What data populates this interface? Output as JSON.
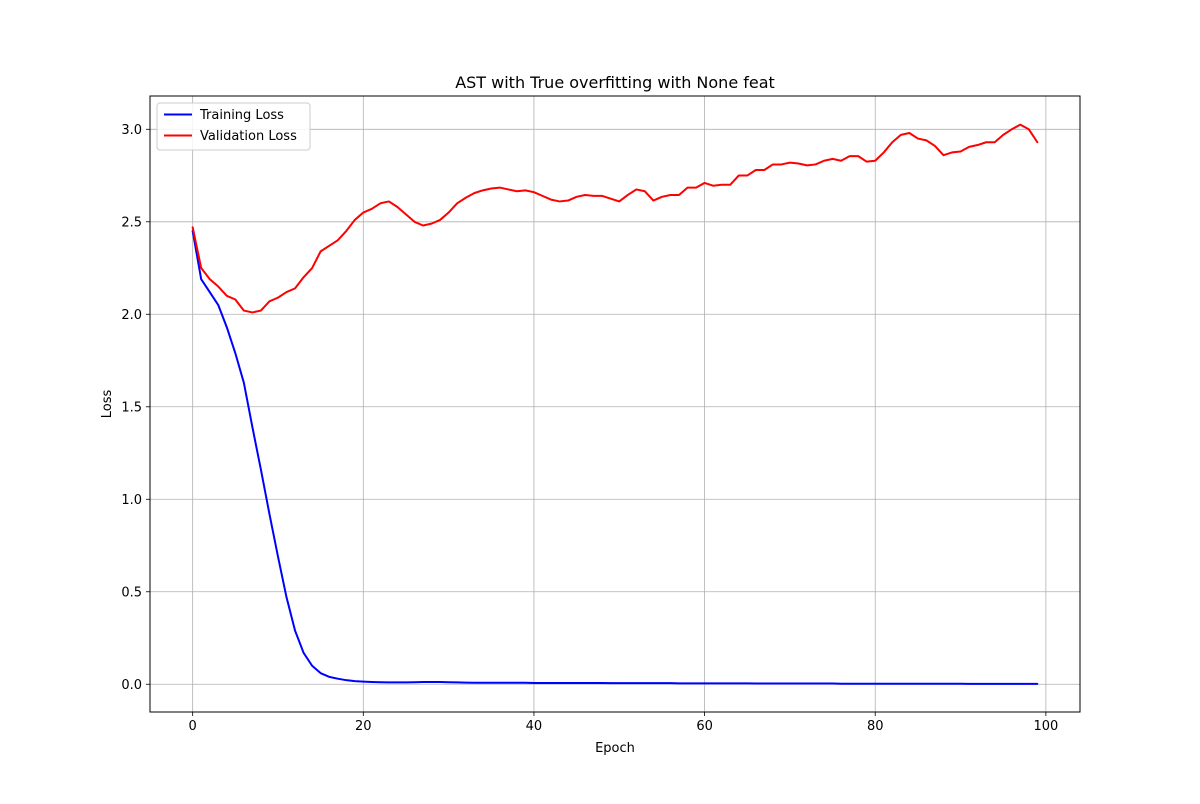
{
  "chart_data": {
    "type": "line",
    "title": "AST with True overfitting with None feat",
    "xlabel": "Epoch",
    "ylabel": "Loss",
    "xlim": [
      -5,
      104
    ],
    "ylim": [
      -0.15,
      3.18
    ],
    "grid": true,
    "legend_position": "top-left",
    "x_ticks": [
      0,
      20,
      40,
      60,
      80,
      100
    ],
    "x_tick_labels": [
      "0",
      "20",
      "40",
      "60",
      "80",
      "100"
    ],
    "y_ticks": [
      0.0,
      0.5,
      1.0,
      1.5,
      2.0,
      2.5,
      3.0
    ],
    "y_tick_labels": [
      "0.0",
      "0.5",
      "1.0",
      "1.5",
      "2.0",
      "2.5",
      "3.0"
    ],
    "x": [
      0,
      1,
      2,
      3,
      4,
      5,
      6,
      7,
      8,
      9,
      10,
      11,
      12,
      13,
      14,
      15,
      16,
      17,
      18,
      19,
      20,
      21,
      22,
      23,
      24,
      25,
      26,
      27,
      28,
      29,
      30,
      31,
      32,
      33,
      34,
      35,
      36,
      37,
      38,
      39,
      40,
      41,
      42,
      43,
      44,
      45,
      46,
      47,
      48,
      49,
      50,
      51,
      52,
      53,
      54,
      55,
      56,
      57,
      58,
      59,
      60,
      61,
      62,
      63,
      64,
      65,
      66,
      67,
      68,
      69,
      70,
      71,
      72,
      73,
      74,
      75,
      76,
      77,
      78,
      79,
      80,
      81,
      82,
      83,
      84,
      85,
      86,
      87,
      88,
      89,
      90,
      91,
      92,
      93,
      94,
      95,
      96,
      97,
      98,
      99
    ],
    "series": [
      {
        "name": "Training Loss",
        "color": "#0000ff",
        "values": [
          2.45,
          2.19,
          2.12,
          2.05,
          1.93,
          1.79,
          1.63,
          1.39,
          1.16,
          0.92,
          0.69,
          0.47,
          0.29,
          0.17,
          0.1,
          0.06,
          0.04,
          0.03,
          0.022,
          0.017,
          0.014,
          0.012,
          0.011,
          0.01,
          0.01,
          0.01,
          0.011,
          0.012,
          0.012,
          0.012,
          0.011,
          0.01,
          0.009,
          0.008,
          0.008,
          0.008,
          0.008,
          0.008,
          0.008,
          0.008,
          0.007,
          0.007,
          0.007,
          0.007,
          0.007,
          0.007,
          0.007,
          0.007,
          0.007,
          0.006,
          0.006,
          0.006,
          0.006,
          0.006,
          0.006,
          0.006,
          0.006,
          0.005,
          0.005,
          0.005,
          0.005,
          0.005,
          0.005,
          0.005,
          0.005,
          0.005,
          0.004,
          0.004,
          0.004,
          0.004,
          0.004,
          0.004,
          0.004,
          0.004,
          0.004,
          0.004,
          0.003,
          0.003,
          0.003,
          0.003,
          0.003,
          0.003,
          0.003,
          0.003,
          0.003,
          0.003,
          0.003,
          0.003,
          0.003,
          0.003,
          0.003,
          0.002,
          0.002,
          0.002,
          0.002,
          0.002,
          0.002,
          0.002,
          0.002,
          0.002
        ]
      },
      {
        "name": "Validation Loss",
        "color": "#ff0000",
        "values": [
          2.47,
          2.25,
          2.19,
          2.15,
          2.1,
          2.08,
          2.02,
          2.01,
          2.02,
          2.07,
          2.09,
          2.12,
          2.14,
          2.2,
          2.25,
          2.34,
          2.37,
          2.4,
          2.45,
          2.51,
          2.55,
          2.57,
          2.6,
          2.61,
          2.58,
          2.54,
          2.5,
          2.48,
          2.49,
          2.51,
          2.55,
          2.6,
          2.63,
          2.655,
          2.67,
          2.68,
          2.685,
          2.675,
          2.665,
          2.67,
          2.66,
          2.64,
          2.62,
          2.61,
          2.615,
          2.635,
          2.645,
          2.64,
          2.64,
          2.625,
          2.61,
          2.645,
          2.675,
          2.665,
          2.615,
          2.635,
          2.645,
          2.645,
          2.685,
          2.685,
          2.71,
          2.695,
          2.7,
          2.7,
          2.75,
          2.75,
          2.78,
          2.78,
          2.81,
          2.81,
          2.82,
          2.815,
          2.805,
          2.81,
          2.83,
          2.84,
          2.83,
          2.855,
          2.855,
          2.825,
          2.83,
          2.875,
          2.93,
          2.97,
          2.98,
          2.95,
          2.94,
          2.91,
          2.86,
          2.875,
          2.88,
          2.905,
          2.915,
          2.93,
          2.93,
          2.97,
          3.0,
          3.025,
          3.0,
          2.93
        ]
      }
    ]
  }
}
